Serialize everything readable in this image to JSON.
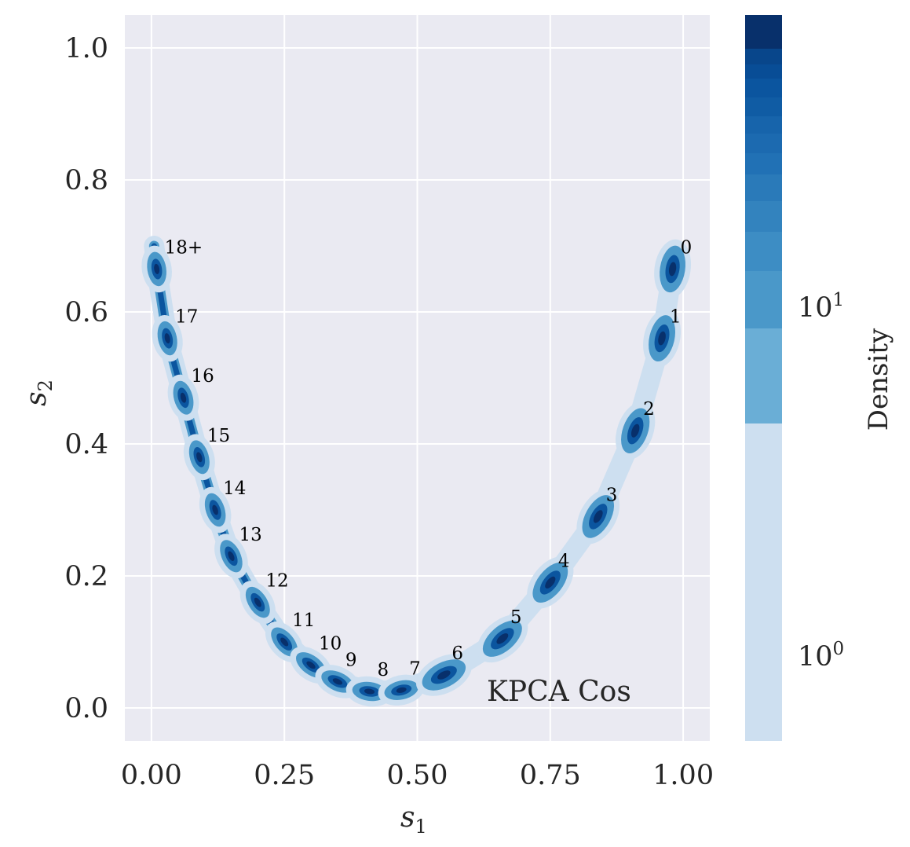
{
  "chart_data": {
    "type": "scatter",
    "subtype": "kde-density",
    "annotation": "KPCA Cos",
    "xlabel": {
      "base": "s",
      "sub": "1"
    },
    "ylabel": {
      "base": "s",
      "sub": "2"
    },
    "xlim": [
      -0.05,
      1.05
    ],
    "ylim": [
      -0.05,
      1.05
    ],
    "xticks": [
      0.0,
      0.25,
      0.5,
      0.75,
      1.0
    ],
    "xtick_labels": [
      "0.00",
      "0.25",
      "0.50",
      "0.75",
      "1.00"
    ],
    "yticks": [
      0.0,
      0.2,
      0.4,
      0.6,
      0.8,
      1.0
    ],
    "ytick_labels": [
      "0.0",
      "0.2",
      "0.4",
      "0.6",
      "0.8",
      "1.0"
    ],
    "grid": true,
    "points": [
      {
        "label": "0",
        "x": 0.98,
        "y": 0.665
      },
      {
        "label": "1",
        "x": 0.96,
        "y": 0.56
      },
      {
        "label": "2",
        "x": 0.91,
        "y": 0.42
      },
      {
        "label": "3",
        "x": 0.84,
        "y": 0.29
      },
      {
        "label": "4",
        "x": 0.75,
        "y": 0.19
      },
      {
        "label": "5",
        "x": 0.66,
        "y": 0.105
      },
      {
        "label": "6",
        "x": 0.55,
        "y": 0.05
      },
      {
        "label": "7",
        "x": 0.47,
        "y": 0.027
      },
      {
        "label": "8",
        "x": 0.41,
        "y": 0.025
      },
      {
        "label": "9",
        "x": 0.35,
        "y": 0.04
      },
      {
        "label": "10",
        "x": 0.3,
        "y": 0.065
      },
      {
        "label": "11",
        "x": 0.25,
        "y": 0.1
      },
      {
        "label": "12",
        "x": 0.2,
        "y": 0.16
      },
      {
        "label": "13",
        "x": 0.15,
        "y": 0.23
      },
      {
        "label": "14",
        "x": 0.12,
        "y": 0.3
      },
      {
        "label": "15",
        "x": 0.09,
        "y": 0.38
      },
      {
        "label": "16",
        "x": 0.06,
        "y": 0.47
      },
      {
        "label": "17",
        "x": 0.03,
        "y": 0.56
      },
      {
        "label": "18+",
        "x": 0.01,
        "y": 0.665
      }
    ],
    "colorbar": {
      "label": "Density",
      "scale": "log",
      "ticks": [
        {
          "base": "10",
          "exp": "0"
        },
        {
          "base": "10",
          "exp": "1"
        }
      ],
      "colors": [
        "#cddff0",
        "#6aaed6",
        "#4a98c9",
        "#3383be",
        "#2171b5",
        "#1764ab",
        "#0b559f",
        "#08468b",
        "#08306b"
      ]
    },
    "colors": {
      "plot_background": "#eaeaf2",
      "grid": "#ffffff",
      "density_low": "#cddff0",
      "density_mid": "#4a98c9",
      "density_high": "#08306b"
    }
  }
}
